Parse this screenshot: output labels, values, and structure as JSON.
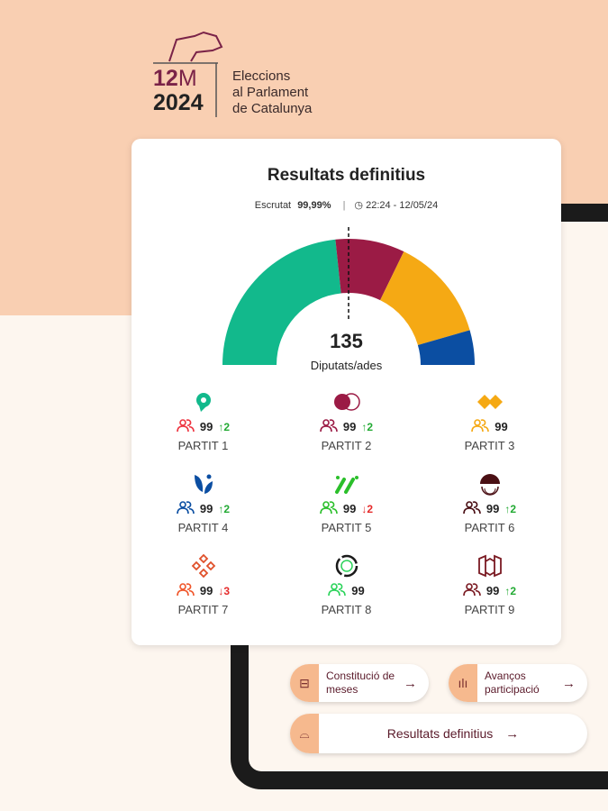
{
  "header": {
    "logo_date": "12",
    "logo_month": "M",
    "logo_year": "2024",
    "logo_line1": "Eleccions",
    "logo_line2": "al Parlament",
    "logo_line3": "de Catalunya"
  },
  "card": {
    "title": "Resultats definitius",
    "scrutiny_label": "Escrutat",
    "scrutiny_value": "99,99%",
    "timestamp": "22:24 - 12/05/24",
    "total_seats": "135",
    "seats_label": "Diputats/ades"
  },
  "chart_data": {
    "type": "pie",
    "subtype": "semicircle",
    "total": 135,
    "majority_line": 68,
    "series": [
      {
        "name": "green",
        "value": 63,
        "color": "#12b98c"
      },
      {
        "name": "crimson",
        "value": 24,
        "color": "#9b1b45"
      },
      {
        "name": "yellow",
        "value": 36,
        "color": "#f5a914"
      },
      {
        "name": "blue",
        "value": 12,
        "color": "#0b4ea2"
      }
    ]
  },
  "parties": [
    {
      "name": "PARTIT 1",
      "seats": "99",
      "change": "↑2",
      "dir": "up",
      "color": "#ee3440",
      "logo": "pin-logo",
      "logo_color": "#12b98c"
    },
    {
      "name": "PARTIT 2",
      "seats": "99",
      "change": "↑2",
      "dir": "up",
      "color": "#9b1b45",
      "logo": "circles-logo",
      "logo_color": "#9b1b45"
    },
    {
      "name": "PARTIT 3",
      "seats": "99",
      "change": "",
      "dir": "",
      "color": "#f5a914",
      "logo": "diamonds-logo",
      "logo_color": "#f5a914"
    },
    {
      "name": "PARTIT 4",
      "seats": "99",
      "change": "↑2",
      "dir": "up",
      "color": "#0b4ea2",
      "logo": "leaf-logo",
      "logo_color": "#0b4ea2"
    },
    {
      "name": "PARTIT 5",
      "seats": "99",
      "change": "↓2",
      "dir": "down",
      "color": "#2bbf2b",
      "logo": "slashes-logo",
      "logo_color": "#2bbf2b"
    },
    {
      "name": "PARTIT 6",
      "seats": "99",
      "change": "↑2",
      "dir": "up",
      "color": "#4a0f14",
      "logo": "dome-logo",
      "logo_color": "#4a0f14"
    },
    {
      "name": "PARTIT 7",
      "seats": "99",
      "change": "↓3",
      "dir": "down",
      "color": "#f0562a",
      "logo": "flower-logo",
      "logo_color": "#e0502a"
    },
    {
      "name": "PARTIT 8",
      "seats": "99",
      "change": "",
      "dir": "",
      "color": "#2bd35a",
      "logo": "ring-logo",
      "logo_color": "#1a1a1a"
    },
    {
      "name": "PARTIT 9",
      "seats": "99",
      "change": "↑2",
      "dir": "up",
      "color": "#7a1a22",
      "logo": "frame-logo",
      "logo_color": "#7a1a22"
    }
  ],
  "buttons": {
    "constitution": "Constitució de meses",
    "participation": "Avanços participació",
    "results": "Resultats definitius"
  },
  "colors": {
    "up": "#22aa33",
    "down": "#e52a2a"
  }
}
